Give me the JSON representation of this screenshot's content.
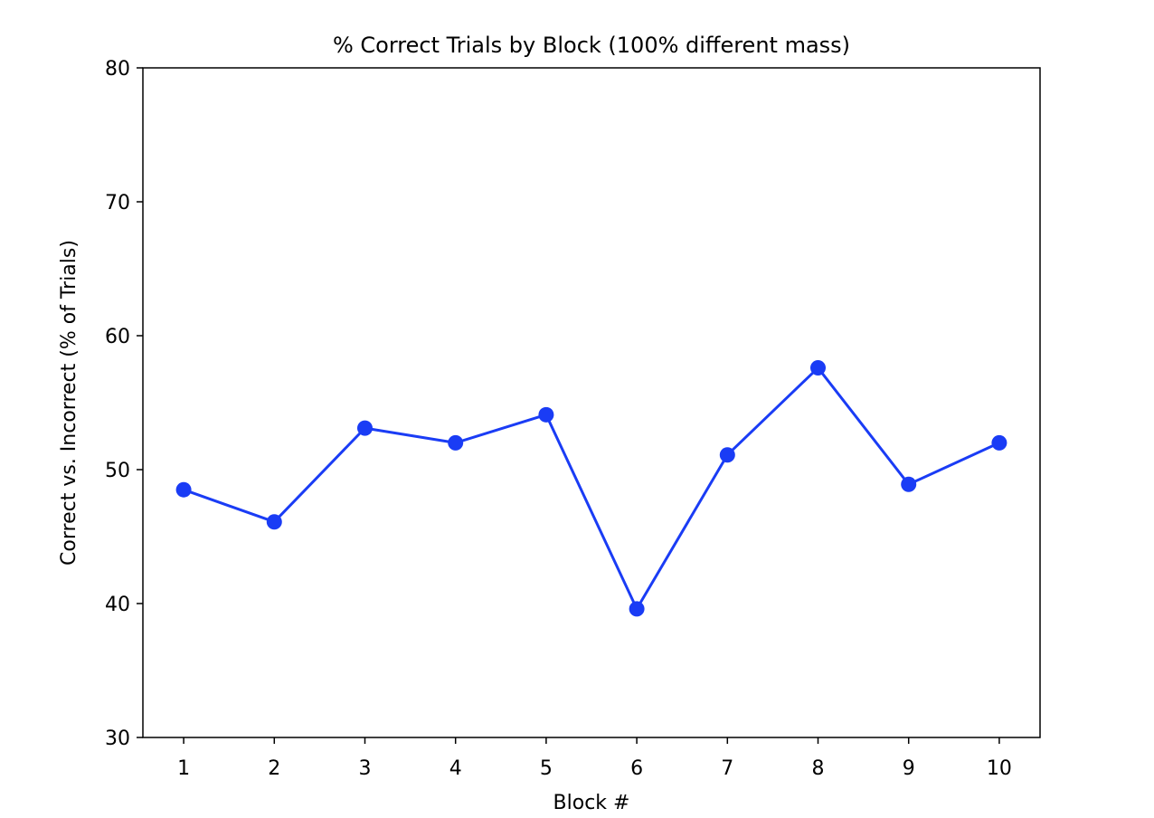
{
  "chart_data": {
    "type": "line",
    "title": "% Correct Trials by Block (100% different mass)",
    "xlabel": "Block #",
    "ylabel": "Correct vs. Incorrect (% of Trials)",
    "x": [
      1,
      2,
      3,
      4,
      5,
      6,
      7,
      8,
      9,
      10
    ],
    "xlim": [
      0.55,
      10.45
    ],
    "ylim": [
      30,
      80
    ],
    "xticks": [
      "1",
      "2",
      "3",
      "4",
      "5",
      "6",
      "7",
      "8",
      "9",
      "10"
    ],
    "yticks": [
      "30",
      "40",
      "50",
      "60",
      "70",
      "80"
    ],
    "grid": false,
    "series": [
      {
        "values": [
          48.5,
          46.1,
          53.1,
          52.0,
          54.1,
          39.6,
          51.1,
          57.6,
          48.9,
          52.0
        ],
        "color": "#1a3cf5",
        "marker": "circle"
      }
    ]
  }
}
